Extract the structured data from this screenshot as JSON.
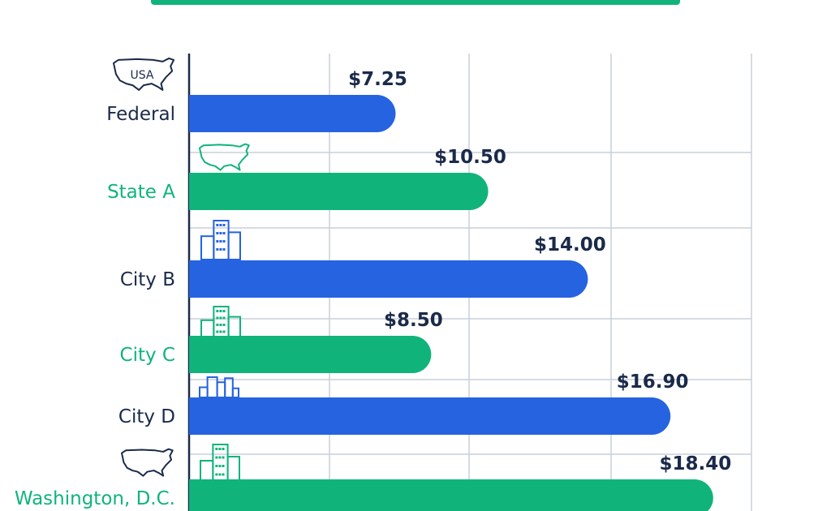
{
  "chart_data": {
    "type": "bar",
    "orientation": "horizontal",
    "title": "",
    "xlabel": "",
    "ylabel": "",
    "grid": true,
    "categories": [
      "Federal",
      "State A",
      "City B",
      "City C",
      "City D",
      "Washington, D.C."
    ],
    "values": [
      7.25,
      10.5,
      14.0,
      8.5,
      16.9,
      18.4
    ],
    "value_labels": [
      "$7.25",
      "$10.50",
      "$14.00",
      "$8.50",
      "$16.90",
      "$18.40"
    ],
    "icons": [
      "usa-map-icon",
      "usa-map-icon",
      "city-buildings-icon",
      "city-buildings-icon",
      "city-skyline-icon",
      "city-buildings-icon"
    ],
    "icon_texts": [
      "USA",
      "",
      "",
      "",
      "",
      ""
    ],
    "bar_colors": [
      "#2563e0",
      "#10b47a",
      "#2563e0",
      "#10b47a",
      "#2563e0",
      "#10b47a"
    ],
    "label_colors": [
      "#1a2a4a",
      "#10b47a",
      "#1a2a4a",
      "#10b47a",
      "#1a2a4a",
      "#10b47a"
    ],
    "colors": {
      "blue": "#2563e0",
      "green": "#10b47a",
      "navy": "#1a2a4a",
      "grid": "#c9cfdc"
    }
  }
}
